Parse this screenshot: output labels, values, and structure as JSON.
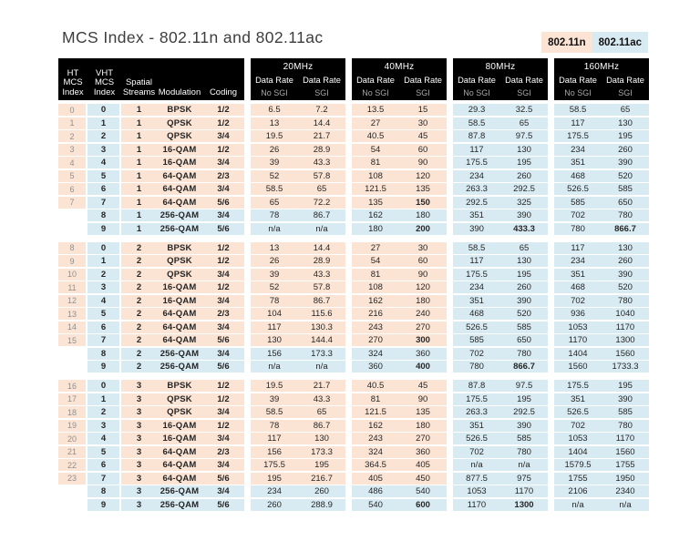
{
  "title": "MCS Index - 802.11n and 802.11ac",
  "legend": {
    "n_label": "802.11n",
    "ac_label": "802.11ac"
  },
  "colors": {
    "n_highlight": "#fce4d4",
    "ac_highlight": "#d8ebf2",
    "header_bg": "#000000",
    "header_text": "#ffffff",
    "sgi_text": "#a8a8a8",
    "ht_text": "#8f8f8f"
  },
  "header": {
    "left_columns": [
      "HT MCS Index",
      "VHT MCS Index",
      "Spatial Streams",
      "Modulation",
      "Coding"
    ],
    "bands": [
      "20MHz",
      "40MHz",
      "80MHz",
      "160MHz"
    ],
    "data_rate_label": "Data Rate",
    "no_sgi_label": "No SGI",
    "sgi_label": "SGI"
  },
  "table": {
    "groups": [
      {
        "spatial_streams": "1",
        "rows": [
          {
            "ht": "0",
            "vht": "0",
            "streams": "1",
            "modulation": "BPSK",
            "coding": "1/2",
            "rates": [
              "6.5",
              "7.2",
              "13.5",
              "15",
              "29.3",
              "32.5",
              "58.5",
              "65"
            ]
          },
          {
            "ht": "1",
            "vht": "1",
            "streams": "1",
            "modulation": "QPSK",
            "coding": "1/2",
            "rates": [
              "13",
              "14.4",
              "27",
              "30",
              "58.5",
              "65",
              "117",
              "130"
            ]
          },
          {
            "ht": "2",
            "vht": "2",
            "streams": "1",
            "modulation": "QPSK",
            "coding": "3/4",
            "rates": [
              "19.5",
              "21.7",
              "40.5",
              "45",
              "87.8",
              "97.5",
              "175.5",
              "195"
            ]
          },
          {
            "ht": "3",
            "vht": "3",
            "streams": "1",
            "modulation": "16-QAM",
            "coding": "1/2",
            "rates": [
              "26",
              "28.9",
              "54",
              "60",
              "117",
              "130",
              "234",
              "260"
            ]
          },
          {
            "ht": "4",
            "vht": "4",
            "streams": "1",
            "modulation": "16-QAM",
            "coding": "3/4",
            "rates": [
              "39",
              "43.3",
              "81",
              "90",
              "175.5",
              "195",
              "351",
              "390"
            ]
          },
          {
            "ht": "5",
            "vht": "5",
            "streams": "1",
            "modulation": "64-QAM",
            "coding": "2/3",
            "rates": [
              "52",
              "57.8",
              "108",
              "120",
              "234",
              "260",
              "468",
              "520"
            ]
          },
          {
            "ht": "6",
            "vht": "6",
            "streams": "1",
            "modulation": "64-QAM",
            "coding": "3/4",
            "rates": [
              "58.5",
              "65",
              "121.5",
              "135",
              "263.3",
              "292.5",
              "526.5",
              "585"
            ]
          },
          {
            "ht": "7",
            "vht": "7",
            "streams": "1",
            "modulation": "64-QAM",
            "coding": "5/6",
            "rates": [
              "65",
              "72.2",
              "135",
              "150",
              "292.5",
              "325",
              "585",
              "650"
            ]
          },
          {
            "ht": "",
            "vht": "8",
            "streams": "1",
            "modulation": "256-QAM",
            "coding": "3/4",
            "rates": [
              "78",
              "86.7",
              "162",
              "180",
              "351",
              "390",
              "702",
              "780"
            ]
          },
          {
            "ht": "",
            "vht": "9",
            "streams": "1",
            "modulation": "256-QAM",
            "coding": "5/6",
            "rates": [
              "n/a",
              "n/a",
              "180",
              "200",
              "390",
              "433.3",
              "780",
              "866.7"
            ]
          }
        ]
      },
      {
        "spatial_streams": "2",
        "rows": [
          {
            "ht": "8",
            "vht": "0",
            "streams": "2",
            "modulation": "BPSK",
            "coding": "1/2",
            "rates": [
              "13",
              "14.4",
              "27",
              "30",
              "58.5",
              "65",
              "117",
              "130"
            ]
          },
          {
            "ht": "9",
            "vht": "1",
            "streams": "2",
            "modulation": "QPSK",
            "coding": "1/2",
            "rates": [
              "26",
              "28.9",
              "54",
              "60",
              "117",
              "130",
              "234",
              "260"
            ]
          },
          {
            "ht": "10",
            "vht": "2",
            "streams": "2",
            "modulation": "QPSK",
            "coding": "3/4",
            "rates": [
              "39",
              "43.3",
              "81",
              "90",
              "175.5",
              "195",
              "351",
              "390"
            ]
          },
          {
            "ht": "11",
            "vht": "3",
            "streams": "2",
            "modulation": "16-QAM",
            "coding": "1/2",
            "rates": [
              "52",
              "57.8",
              "108",
              "120",
              "234",
              "260",
              "468",
              "520"
            ]
          },
          {
            "ht": "12",
            "vht": "4",
            "streams": "2",
            "modulation": "16-QAM",
            "coding": "3/4",
            "rates": [
              "78",
              "86.7",
              "162",
              "180",
              "351",
              "390",
              "702",
              "780"
            ]
          },
          {
            "ht": "13",
            "vht": "5",
            "streams": "2",
            "modulation": "64-QAM",
            "coding": "2/3",
            "rates": [
              "104",
              "115.6",
              "216",
              "240",
              "468",
              "520",
              "936",
              "1040"
            ]
          },
          {
            "ht": "14",
            "vht": "6",
            "streams": "2",
            "modulation": "64-QAM",
            "coding": "3/4",
            "rates": [
              "117",
              "130.3",
              "243",
              "270",
              "526.5",
              "585",
              "1053",
              "1170"
            ]
          },
          {
            "ht": "15",
            "vht": "7",
            "streams": "2",
            "modulation": "64-QAM",
            "coding": "5/6",
            "rates": [
              "130",
              "144.4",
              "270",
              "300",
              "585",
              "650",
              "1170",
              "1300"
            ]
          },
          {
            "ht": "",
            "vht": "8",
            "streams": "2",
            "modulation": "256-QAM",
            "coding": "3/4",
            "rates": [
              "156",
              "173.3",
              "324",
              "360",
              "702",
              "780",
              "1404",
              "1560"
            ]
          },
          {
            "ht": "",
            "vht": "9",
            "streams": "2",
            "modulation": "256-QAM",
            "coding": "5/6",
            "rates": [
              "n/a",
              "n/a",
              "360",
              "400",
              "780",
              "866.7",
              "1560",
              "1733.3"
            ]
          }
        ]
      },
      {
        "spatial_streams": "3",
        "rows": [
          {
            "ht": "16",
            "vht": "0",
            "streams": "3",
            "modulation": "BPSK",
            "coding": "1/2",
            "rates": [
              "19.5",
              "21.7",
              "40.5",
              "45",
              "87.8",
              "97.5",
              "175.5",
              "195"
            ]
          },
          {
            "ht": "17",
            "vht": "1",
            "streams": "3",
            "modulation": "QPSK",
            "coding": "1/2",
            "rates": [
              "39",
              "43.3",
              "81",
              "90",
              "175.5",
              "195",
              "351",
              "390"
            ]
          },
          {
            "ht": "18",
            "vht": "2",
            "streams": "3",
            "modulation": "QPSK",
            "coding": "3/4",
            "rates": [
              "58.5",
              "65",
              "121.5",
              "135",
              "263.3",
              "292.5",
              "526.5",
              "585"
            ]
          },
          {
            "ht": "19",
            "vht": "3",
            "streams": "3",
            "modulation": "16-QAM",
            "coding": "1/2",
            "rates": [
              "78",
              "86.7",
              "162",
              "180",
              "351",
              "390",
              "702",
              "780"
            ]
          },
          {
            "ht": "20",
            "vht": "4",
            "streams": "3",
            "modulation": "16-QAM",
            "coding": "3/4",
            "rates": [
              "117",
              "130",
              "243",
              "270",
              "526.5",
              "585",
              "1053",
              "1170"
            ]
          },
          {
            "ht": "21",
            "vht": "5",
            "streams": "3",
            "modulation": "64-QAM",
            "coding": "2/3",
            "rates": [
              "156",
              "173.3",
              "324",
              "360",
              "702",
              "780",
              "1404",
              "1560"
            ]
          },
          {
            "ht": "22",
            "vht": "6",
            "streams": "3",
            "modulation": "64-QAM",
            "coding": "3/4",
            "rates": [
              "175.5",
              "195",
              "364.5",
              "405",
              "n/a",
              "n/a",
              "1579.5",
              "1755"
            ]
          },
          {
            "ht": "23",
            "vht": "7",
            "streams": "3",
            "modulation": "64-QAM",
            "coding": "5/6",
            "rates": [
              "195",
              "216.7",
              "405",
              "450",
              "877.5",
              "975",
              "1755",
              "1950"
            ]
          },
          {
            "ht": "",
            "vht": "8",
            "streams": "3",
            "modulation": "256-QAM",
            "coding": "3/4",
            "rates": [
              "234",
              "260",
              "486",
              "540",
              "1053",
              "1170",
              "2106",
              "2340"
            ]
          },
          {
            "ht": "",
            "vht": "9",
            "streams": "3",
            "modulation": "256-QAM",
            "coding": "5/6",
            "rates": [
              "260",
              "288.9",
              "540",
              "600",
              "1170",
              "1300",
              "n/a",
              "n/a"
            ]
          }
        ]
      }
    ],
    "bold_rate_cells": [
      [
        0,
        7,
        3
      ],
      [
        0,
        9,
        3
      ],
      [
        0,
        9,
        5
      ],
      [
        0,
        9,
        7
      ],
      [
        1,
        7,
        3
      ],
      [
        1,
        9,
        3
      ],
      [
        1,
        9,
        5
      ],
      [
        2,
        9,
        3
      ],
      [
        2,
        9,
        5
      ]
    ]
  }
}
